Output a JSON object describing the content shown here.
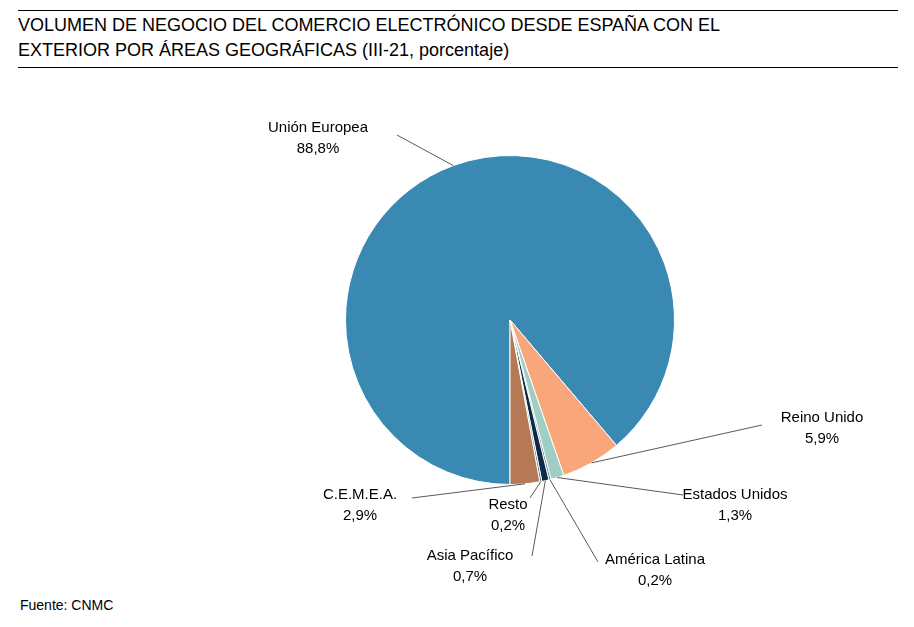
{
  "chart_data": {
    "type": "pie",
    "title": "VOLUMEN DE NEGOCIO DEL COMERCIO ELECTRÓNICO DESDE ESPAÑA CON EL\nEXTERIOR POR ÁREAS GEOGRÁFICAS (III-21, porcentaje)",
    "categories": [
      "Unión Europea",
      "Reino Unido",
      "Estados Unidos",
      "América Latina",
      "Asia Pacífico",
      "Resto",
      "C.E.M.E.A."
    ],
    "values": [
      88.8,
      5.9,
      1.3,
      0.2,
      0.7,
      0.2,
      2.9
    ],
    "value_labels": [
      "88,8%",
      "5,9%",
      "1,3%",
      "0,2%",
      "0,7%",
      "0,2%",
      "2,9%"
    ],
    "colors": [
      "#3a89b2",
      "#f9a77a",
      "#9ecfc2",
      "#5a7fa0",
      "#0f2a44",
      "#4f6f8f",
      "#b57a55"
    ],
    "data_labels": true,
    "source": "Fuente: CNMC"
  }
}
